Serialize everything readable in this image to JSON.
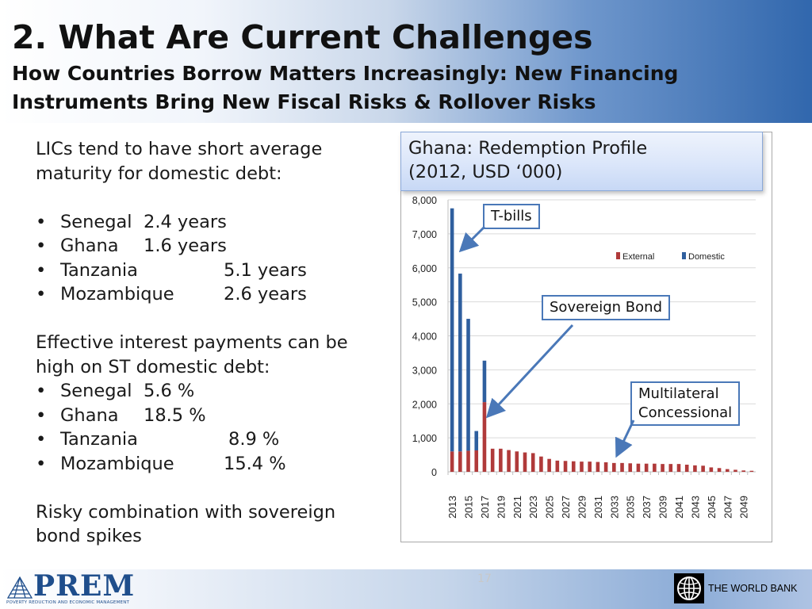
{
  "header": {
    "title": "2. What Are Current Challenges",
    "subtitle": "How Countries Borrow Matters Increasingly: New Financing Instruments Bring New Fiscal Risks & Rollover Risks"
  },
  "left": {
    "maturity_intro": "LICs tend to have short average maturity for domestic debt:",
    "maturity": [
      {
        "country": "Senegal",
        "value": "2.4 years"
      },
      {
        "country": "Ghana",
        "value": "1.6 years"
      },
      {
        "country": "Tanzania",
        "value": "5.1 years"
      },
      {
        "country": "Mozambique",
        "value": "2.6 years"
      }
    ],
    "interest_intro": "Effective interest payments can be high on ST domestic debt:",
    "interest": [
      {
        "country": "Senegal",
        "value": "5.6 %"
      },
      {
        "country": "Ghana",
        "value": "18.5 %"
      },
      {
        "country": "Tanzania",
        "value": "8.9 %"
      },
      {
        "country": "Mozambique",
        "value": "15.4 %"
      }
    ],
    "conclusion": "Risky combination with sovereign bond spikes"
  },
  "chart_caption": {
    "line1": "Ghana: Redemption Profile",
    "line2": "(2012, USD ‘000)"
  },
  "callouts": {
    "tbills": "T-bills",
    "sovereign_bond": "Sovereign Bond",
    "multilateral_1": "Multilateral",
    "multilateral_2": "Concessional"
  },
  "chart_data": {
    "type": "bar",
    "stacked": true,
    "title": "Ghana: Redemption Profile (2012, USD ‘000)",
    "xlabel": "",
    "ylabel": "",
    "ylim": [
      0,
      8000
    ],
    "yticks": [
      0,
      1000,
      2000,
      3000,
      4000,
      5000,
      6000,
      7000,
      8000
    ],
    "ytick_labels": [
      "0",
      "1,000",
      "2,000",
      "3,000",
      "4,000",
      "5,000",
      "6,000",
      "7,000",
      "8,000"
    ],
    "grid": true,
    "legend": "top-right",
    "categories": [
      2013,
      2014,
      2015,
      2016,
      2017,
      2018,
      2019,
      2020,
      2021,
      2022,
      2023,
      2024,
      2025,
      2026,
      2027,
      2028,
      2029,
      2030,
      2031,
      2032,
      2033,
      2034,
      2035,
      2036,
      2037,
      2038,
      2039,
      2040,
      2041,
      2042,
      2043,
      2044,
      2045,
      2046,
      2047,
      2048,
      2049,
      2050
    ],
    "tick_labels": [
      "2013",
      "2015",
      "2017",
      "2019",
      "2021",
      "2023",
      "2025",
      "2027",
      "2029",
      "2031",
      "2033",
      "2035",
      "2037",
      "2039",
      "2041",
      "2043",
      "2045",
      "2047",
      "2049"
    ],
    "series": [
      {
        "name": "External",
        "color": "#b03a3a",
        "values": [
          600,
          600,
          620,
          630,
          2050,
          680,
          680,
          640,
          600,
          570,
          550,
          450,
          380,
          330,
          320,
          310,
          300,
          300,
          290,
          280,
          260,
          260,
          250,
          240,
          240,
          240,
          230,
          230,
          230,
          210,
          190,
          180,
          130,
          110,
          80,
          60,
          40,
          30
        ]
      },
      {
        "name": "Domestic",
        "color": "#2f5f9e",
        "values": [
          7150,
          5230,
          3880,
          570,
          1220,
          0,
          0,
          0,
          0,
          0,
          0,
          0,
          0,
          0,
          0,
          0,
          0,
          0,
          0,
          0,
          0,
          0,
          0,
          0,
          0,
          0,
          0,
          0,
          0,
          0,
          0,
          0,
          0,
          0,
          0,
          0,
          0,
          0
        ]
      }
    ]
  },
  "page_number": "17",
  "footer": {
    "prem_logo": "PREM",
    "prem_tagline": "POVERTY REDUCTION AND ECONOMIC MANAGEMENT",
    "worldbank": "THE WORLD BANK"
  }
}
